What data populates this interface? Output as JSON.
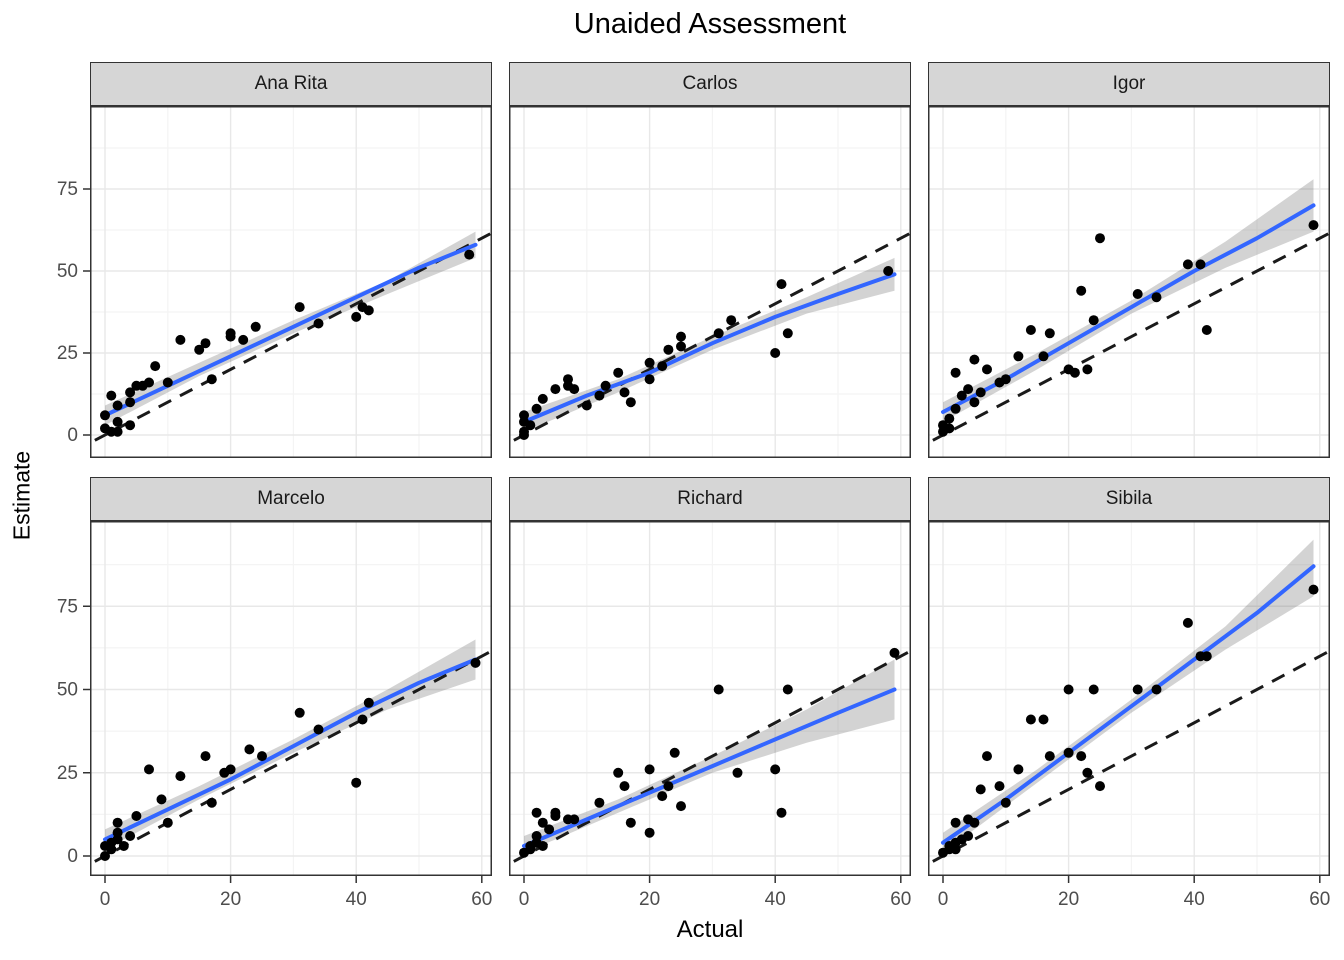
{
  "title": "Unaided Assessment",
  "colors": {
    "smooth_line": "#3366FF",
    "ribbon": "rgba(96,96,96,0.28)",
    "point": "#000000",
    "identity_line": "#1a1a1a",
    "strip_background": "#d6d6d6",
    "panel_border": "#333333",
    "grid_major": "#e8e8e8",
    "grid_minor": "#f4f4f4",
    "tick_text": "#4d4d4d"
  },
  "chart_data": {
    "type": "scatter",
    "title": "Unaided Assessment",
    "xlabel": "Actual",
    "ylabel": "Estimate",
    "x_ticks": [
      0,
      20,
      40,
      60
    ],
    "y_ticks": [
      0,
      25,
      50,
      75
    ],
    "xlim": [
      -2.5,
      61.5
    ],
    "ylim": [
      -7,
      99
    ],
    "grid": true,
    "legend_position": "none",
    "reference_line": "y = x dashed black identity line in every facet",
    "smoother": "blue linear/loess fit with gray confidence ribbon in every facet",
    "facet_layout": {
      "rows": 2,
      "cols": 3
    },
    "facets": [
      {
        "name": "Ana Rita",
        "points": [
          [
            0,
            2
          ],
          [
            0,
            6
          ],
          [
            1,
            1
          ],
          [
            1,
            12
          ],
          [
            2,
            1
          ],
          [
            2,
            4
          ],
          [
            2,
            9
          ],
          [
            4,
            3
          ],
          [
            4,
            10
          ],
          [
            4,
            13
          ],
          [
            5,
            15
          ],
          [
            6,
            15
          ],
          [
            7,
            16
          ],
          [
            8,
            21
          ],
          [
            10,
            16
          ],
          [
            12,
            29
          ],
          [
            15,
            26
          ],
          [
            16,
            28
          ],
          [
            17,
            17
          ],
          [
            20,
            30
          ],
          [
            20,
            31
          ],
          [
            22,
            29
          ],
          [
            24,
            33
          ],
          [
            31,
            39
          ],
          [
            34,
            34
          ],
          [
            40,
            36
          ],
          [
            41,
            39
          ],
          [
            42,
            38
          ],
          [
            58,
            55
          ]
        ],
        "smooth": [
          [
            0,
            6
          ],
          [
            10,
            15
          ],
          [
            20,
            24
          ],
          [
            30,
            33
          ],
          [
            40,
            42
          ],
          [
            50,
            51
          ],
          [
            59,
            58
          ]
        ],
        "ribbon": [
          [
            0,
            3,
            9
          ],
          [
            15,
            18,
            22
          ],
          [
            30,
            31,
            35
          ],
          [
            45,
            43,
            47
          ],
          [
            59,
            54,
            62
          ]
        ]
      },
      {
        "name": "Carlos",
        "points": [
          [
            0,
            0
          ],
          [
            0,
            1
          ],
          [
            0,
            4
          ],
          [
            0,
            6
          ],
          [
            1,
            3
          ],
          [
            2,
            8
          ],
          [
            3,
            11
          ],
          [
            5,
            14
          ],
          [
            7,
            15
          ],
          [
            7,
            17
          ],
          [
            8,
            14
          ],
          [
            10,
            9
          ],
          [
            12,
            12
          ],
          [
            13,
            15
          ],
          [
            15,
            19
          ],
          [
            16,
            13
          ],
          [
            17,
            10
          ],
          [
            20,
            17
          ],
          [
            20,
            22
          ],
          [
            22,
            21
          ],
          [
            23,
            26
          ],
          [
            25,
            27
          ],
          [
            25,
            30
          ],
          [
            31,
            31
          ],
          [
            33,
            35
          ],
          [
            40,
            25
          ],
          [
            41,
            46
          ],
          [
            42,
            31
          ],
          [
            58,
            50
          ]
        ],
        "smooth": [
          [
            0,
            4
          ],
          [
            10,
            12
          ],
          [
            20,
            19
          ],
          [
            30,
            28
          ],
          [
            40,
            36
          ],
          [
            50,
            43
          ],
          [
            59,
            49
          ]
        ],
        "ribbon": [
          [
            0,
            1,
            7
          ],
          [
            15,
            13,
            17
          ],
          [
            30,
            26,
            30
          ],
          [
            45,
            37,
            42
          ],
          [
            59,
            44,
            54
          ]
        ]
      },
      {
        "name": "Igor",
        "points": [
          [
            0,
            1
          ],
          [
            0,
            3
          ],
          [
            1,
            2
          ],
          [
            1,
            5
          ],
          [
            2,
            8
          ],
          [
            2,
            19
          ],
          [
            3,
            12
          ],
          [
            4,
            14
          ],
          [
            5,
            10
          ],
          [
            5,
            23
          ],
          [
            6,
            13
          ],
          [
            7,
            20
          ],
          [
            9,
            16
          ],
          [
            10,
            17
          ],
          [
            12,
            24
          ],
          [
            14,
            32
          ],
          [
            16,
            24
          ],
          [
            17,
            31
          ],
          [
            20,
            20
          ],
          [
            21,
            19
          ],
          [
            22,
            44
          ],
          [
            23,
            20
          ],
          [
            24,
            35
          ],
          [
            25,
            60
          ],
          [
            31,
            43
          ],
          [
            34,
            42
          ],
          [
            39,
            52
          ],
          [
            41,
            52
          ],
          [
            42,
            32
          ],
          [
            59,
            64
          ]
        ],
        "smooth": [
          [
            0,
            7
          ],
          [
            10,
            17
          ],
          [
            20,
            28
          ],
          [
            30,
            39
          ],
          [
            40,
            50
          ],
          [
            50,
            60
          ],
          [
            59,
            70
          ]
        ],
        "ribbon": [
          [
            0,
            4,
            10
          ],
          [
            15,
            20,
            25
          ],
          [
            30,
            37,
            41
          ],
          [
            45,
            51,
            59
          ],
          [
            59,
            62,
            78
          ]
        ]
      },
      {
        "name": "Marcelo",
        "points": [
          [
            0,
            0
          ],
          [
            0,
            3
          ],
          [
            1,
            2
          ],
          [
            1,
            4
          ],
          [
            2,
            5
          ],
          [
            2,
            7
          ],
          [
            2,
            10
          ],
          [
            3,
            3
          ],
          [
            4,
            6
          ],
          [
            5,
            12
          ],
          [
            7,
            26
          ],
          [
            9,
            17
          ],
          [
            10,
            10
          ],
          [
            12,
            24
          ],
          [
            16,
            30
          ],
          [
            17,
            16
          ],
          [
            19,
            25
          ],
          [
            20,
            26
          ],
          [
            23,
            32
          ],
          [
            25,
            30
          ],
          [
            31,
            43
          ],
          [
            34,
            38
          ],
          [
            40,
            22
          ],
          [
            41,
            41
          ],
          [
            42,
            46
          ],
          [
            59,
            58
          ]
        ],
        "smooth": [
          [
            0,
            5
          ],
          [
            10,
            14
          ],
          [
            20,
            23
          ],
          [
            30,
            33
          ],
          [
            40,
            43
          ],
          [
            50,
            52
          ],
          [
            59,
            59
          ]
        ],
        "ribbon": [
          [
            0,
            2,
            8
          ],
          [
            15,
            17,
            21
          ],
          [
            30,
            31,
            35
          ],
          [
            45,
            44,
            50
          ],
          [
            59,
            53,
            65
          ]
        ]
      },
      {
        "name": "Richard",
        "points": [
          [
            0,
            1
          ],
          [
            1,
            2
          ],
          [
            1,
            3
          ],
          [
            2,
            4
          ],
          [
            2,
            6
          ],
          [
            2,
            13
          ],
          [
            3,
            3
          ],
          [
            3,
            10
          ],
          [
            4,
            8
          ],
          [
            5,
            12
          ],
          [
            5,
            13
          ],
          [
            7,
            11
          ],
          [
            8,
            11
          ],
          [
            12,
            16
          ],
          [
            15,
            25
          ],
          [
            16,
            21
          ],
          [
            17,
            10
          ],
          [
            20,
            7
          ],
          [
            20,
            26
          ],
          [
            22,
            18
          ],
          [
            23,
            21
          ],
          [
            24,
            31
          ],
          [
            25,
            15
          ],
          [
            31,
            50
          ],
          [
            34,
            25
          ],
          [
            40,
            26
          ],
          [
            41,
            13
          ],
          [
            42,
            50
          ],
          [
            59,
            61
          ]
        ],
        "smooth": [
          [
            0,
            3
          ],
          [
            10,
            11
          ],
          [
            20,
            19
          ],
          [
            30,
            27
          ],
          [
            40,
            35
          ],
          [
            50,
            43
          ],
          [
            59,
            50
          ]
        ],
        "ribbon": [
          [
            0,
            1,
            6
          ],
          [
            15,
            13,
            17
          ],
          [
            30,
            25,
            30
          ],
          [
            45,
            34,
            44
          ],
          [
            59,
            41,
            59
          ]
        ]
      },
      {
        "name": "Sibila",
        "points": [
          [
            0,
            1
          ],
          [
            1,
            2
          ],
          [
            1,
            3
          ],
          [
            2,
            2
          ],
          [
            2,
            4
          ],
          [
            2,
            10
          ],
          [
            3,
            5
          ],
          [
            4,
            6
          ],
          [
            4,
            11
          ],
          [
            5,
            10
          ],
          [
            6,
            20
          ],
          [
            7,
            30
          ],
          [
            9,
            21
          ],
          [
            10,
            16
          ],
          [
            12,
            26
          ],
          [
            14,
            41
          ],
          [
            16,
            41
          ],
          [
            17,
            30
          ],
          [
            20,
            31
          ],
          [
            20,
            50
          ],
          [
            22,
            30
          ],
          [
            23,
            25
          ],
          [
            24,
            50
          ],
          [
            25,
            21
          ],
          [
            31,
            50
          ],
          [
            34,
            50
          ],
          [
            39,
            70
          ],
          [
            41,
            60
          ],
          [
            42,
            60
          ],
          [
            59,
            80
          ]
        ],
        "smooth": [
          [
            0,
            4
          ],
          [
            10,
            17
          ],
          [
            20,
            31
          ],
          [
            30,
            45
          ],
          [
            40,
            59
          ],
          [
            50,
            73
          ],
          [
            59,
            87
          ]
        ],
        "ribbon": [
          [
            0,
            1,
            7
          ],
          [
            15,
            22,
            26
          ],
          [
            30,
            43,
            47
          ],
          [
            45,
            62,
            69
          ],
          [
            59,
            78,
            95
          ]
        ]
      }
    ]
  }
}
